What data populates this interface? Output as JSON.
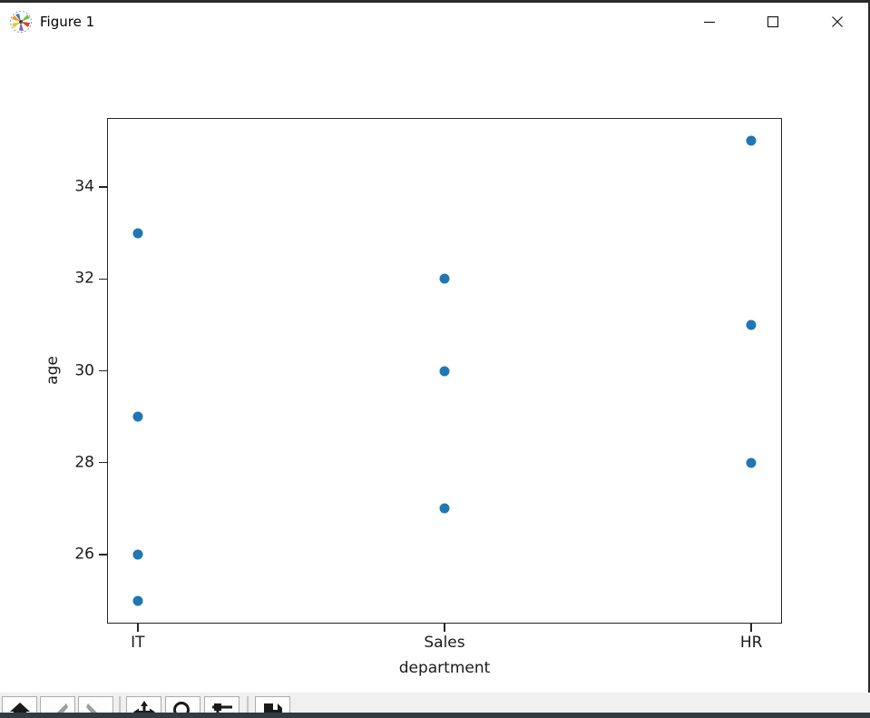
{
  "window": {
    "title": "Figure 1",
    "controls": {
      "minimize": "minimize",
      "maximize": "maximize",
      "close": "close"
    }
  },
  "chart_data": {
    "type": "scatter",
    "title": "",
    "xlabel": "department",
    "ylabel": "age",
    "categories": [
      "IT",
      "Sales",
      "HR"
    ],
    "points": [
      {
        "department": "IT",
        "age": 25
      },
      {
        "department": "IT",
        "age": 26
      },
      {
        "department": "IT",
        "age": 29
      },
      {
        "department": "IT",
        "age": 33
      },
      {
        "department": "Sales",
        "age": 27
      },
      {
        "department": "Sales",
        "age": 30
      },
      {
        "department": "Sales",
        "age": 32
      },
      {
        "department": "HR",
        "age": 28
      },
      {
        "department": "HR",
        "age": 31
      },
      {
        "department": "HR",
        "age": 35
      }
    ],
    "y_ticks": [
      26,
      28,
      30,
      32,
      34
    ],
    "ylim": [
      24.5,
      35.5
    ],
    "xlim": [
      -0.1,
      2.1
    ],
    "grid": false,
    "legend": null,
    "marker_color": "#1f77b4"
  },
  "toolbar": {
    "buttons": [
      {
        "name": "home",
        "enabled": true
      },
      {
        "name": "back",
        "enabled": false
      },
      {
        "name": "forward",
        "enabled": false
      },
      {
        "name": "pan",
        "enabled": true
      },
      {
        "name": "zoom",
        "enabled": true
      },
      {
        "name": "configure-subplots",
        "enabled": true
      },
      {
        "name": "save",
        "enabled": true
      }
    ]
  }
}
